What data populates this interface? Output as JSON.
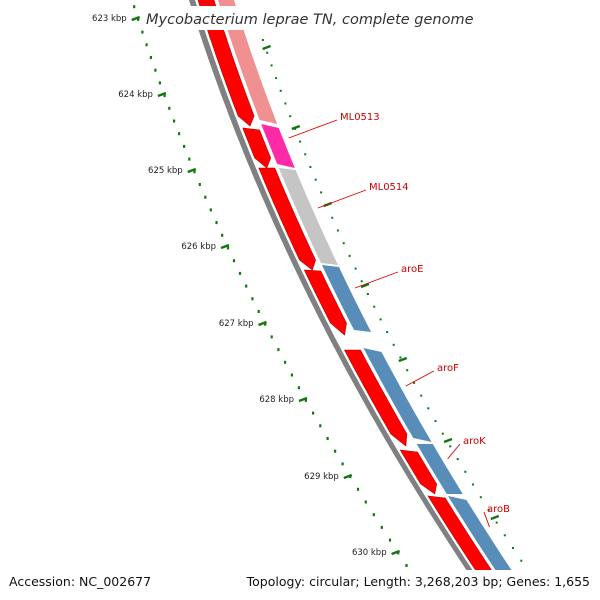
{
  "title": "Mycobacterium leprae TN, complete genome",
  "footer": {
    "accession": "Accession: NC_002677",
    "summary": "Topology: circular; Length: 3,268,203 bp; Genes: 1,655"
  },
  "colors": {
    "backbone": "#808080",
    "cds": "#ff0000",
    "gene_label": "#cc0000",
    "gene_line": "#e00000",
    "tick": "#117711",
    "gene_pink": "#f08a8a",
    "gene_magenta": "#ff1fa3",
    "gene_gray": "#c2c2c2",
    "gene_blue": "#4f87b5"
  },
  "ticks": [
    {
      "label": "623 kbp"
    },
    {
      "label": "624 kbp"
    },
    {
      "label": "625 kbp"
    },
    {
      "label": "626 kbp"
    },
    {
      "label": "627 kbp"
    },
    {
      "label": "628 kbp"
    },
    {
      "label": "629 kbp"
    },
    {
      "label": "630 kbp"
    }
  ],
  "genes": [
    {
      "name": "ML0513",
      "color": "magenta"
    },
    {
      "name": "ML0514",
      "color": "gray"
    },
    {
      "name": "aroE",
      "color": "blue"
    },
    {
      "name": "aroF",
      "color": "blue"
    },
    {
      "name": "aroK",
      "color": "blue"
    },
    {
      "name": "aroB",
      "color": "blue"
    }
  ]
}
